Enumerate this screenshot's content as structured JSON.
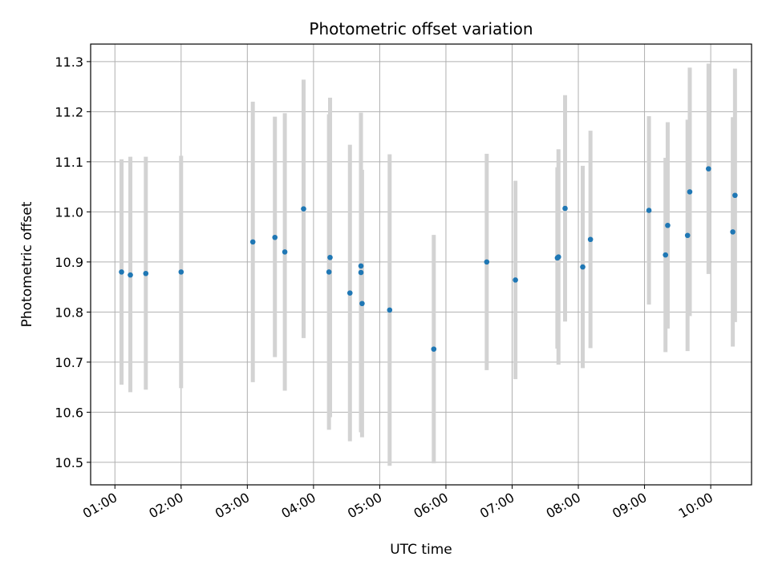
{
  "chart_data": {
    "type": "scatter",
    "title": "Photometric offset variation",
    "xlabel": "UTC time",
    "ylabel": "Photometric offset",
    "xlim": [
      "00:38",
      "10:37"
    ],
    "ylim": [
      10.455,
      11.335
    ],
    "x_ticks": [
      "01:00",
      "02:00",
      "03:00",
      "04:00",
      "05:00",
      "06:00",
      "07:00",
      "08:00",
      "09:00",
      "10:00"
    ],
    "y_ticks": [
      "10.5",
      "10.6",
      "10.7",
      "10.8",
      "10.9",
      "11.0",
      "11.1",
      "11.2",
      "11.3"
    ],
    "grid": true,
    "point_color": "#1f77b4",
    "errorbar_color": "#d3d3d3",
    "points": [
      {
        "x": "01:06",
        "y": 10.88,
        "low": 10.655,
        "high": 11.105
      },
      {
        "x": "01:14",
        "y": 10.874,
        "low": 10.64,
        "high": 11.11
      },
      {
        "x": "01:28",
        "y": 10.877,
        "low": 10.645,
        "high": 11.11
      },
      {
        "x": "02:00",
        "y": 10.88,
        "low": 10.648,
        "high": 11.112
      },
      {
        "x": "03:05",
        "y": 10.94,
        "low": 10.66,
        "high": 11.22
      },
      {
        "x": "03:25",
        "y": 10.949,
        "low": 10.71,
        "high": 11.19
      },
      {
        "x": "03:34",
        "y": 10.92,
        "low": 10.643,
        "high": 11.197
      },
      {
        "x": "03:51",
        "y": 11.006,
        "low": 10.748,
        "high": 11.264
      },
      {
        "x": "04:14",
        "y": 10.88,
        "low": 10.565,
        "high": 11.195
      },
      {
        "x": "04:15",
        "y": 10.909,
        "low": 10.59,
        "high": 11.228
      },
      {
        "x": "04:33",
        "y": 10.838,
        "low": 10.542,
        "high": 11.134
      },
      {
        "x": "04:43",
        "y": 10.892,
        "low": 10.568,
        "high": 11.196
      },
      {
        "x": "04:43",
        "y": 10.879,
        "low": 10.56,
        "high": 11.198
      },
      {
        "x": "04:44",
        "y": 10.817,
        "low": 10.55,
        "high": 11.084
      },
      {
        "x": "05:09",
        "y": 10.804,
        "low": 10.493,
        "high": 11.115
      },
      {
        "x": "05:49",
        "y": 10.726,
        "low": 10.498,
        "high": 10.954
      },
      {
        "x": "06:37",
        "y": 10.9,
        "low": 10.684,
        "high": 11.116
      },
      {
        "x": "07:03",
        "y": 10.864,
        "low": 10.666,
        "high": 11.062
      },
      {
        "x": "07:41",
        "y": 10.908,
        "low": 10.727,
        "high": 11.089
      },
      {
        "x": "07:42",
        "y": 10.91,
        "low": 10.695,
        "high": 11.125
      },
      {
        "x": "07:48",
        "y": 11.007,
        "low": 10.781,
        "high": 11.233
      },
      {
        "x": "08:04",
        "y": 10.89,
        "low": 10.688,
        "high": 11.092
      },
      {
        "x": "08:11",
        "y": 10.945,
        "low": 10.728,
        "high": 11.162
      },
      {
        "x": "09:04",
        "y": 11.003,
        "low": 10.815,
        "high": 11.191
      },
      {
        "x": "09:19",
        "y": 10.914,
        "low": 10.72,
        "high": 11.108
      },
      {
        "x": "09:21",
        "y": 10.973,
        "low": 10.767,
        "high": 11.179
      },
      {
        "x": "09:39",
        "y": 10.953,
        "low": 10.722,
        "high": 11.184
      },
      {
        "x": "09:41",
        "y": 11.04,
        "low": 10.792,
        "high": 11.288
      },
      {
        "x": "09:58",
        "y": 11.086,
        "low": 10.876,
        "high": 11.296
      },
      {
        "x": "10:20",
        "y": 10.96,
        "low": 10.731,
        "high": 11.189
      },
      {
        "x": "10:22",
        "y": 11.033,
        "low": 10.78,
        "high": 11.286
      }
    ]
  }
}
